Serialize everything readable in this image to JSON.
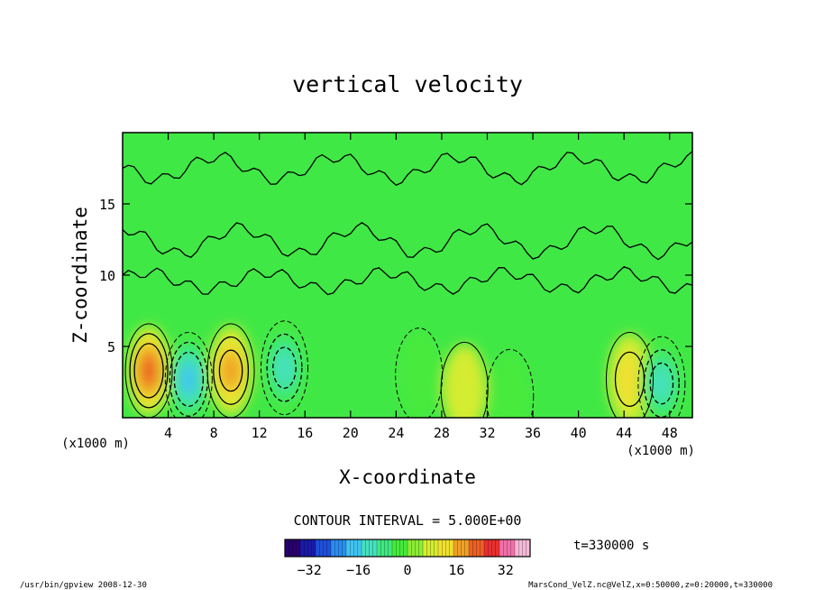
{
  "chart_data": {
    "type": "heatmap",
    "title": "vertical velocity",
    "xlabel": "X-coordinate",
    "ylabel": "Z-coordinate",
    "x_unit_left": "(x1000 m)",
    "x_unit_right": "(x1000 m)",
    "xlim": [
      0,
      50
    ],
    "ylim": [
      0,
      20
    ],
    "x_ticks": [
      4,
      8,
      12,
      16,
      20,
      24,
      28,
      32,
      36,
      40,
      44,
      48
    ],
    "y_ticks": [
      5,
      10,
      15
    ],
    "contour_interval_label": "CONTOUR INTERVAL = 5.000E+00",
    "time_label": "t=330000 s",
    "colorbar": {
      "min": -40,
      "max": 40,
      "tick_values": [
        -32,
        -16,
        0,
        16,
        32
      ],
      "tick_labels": [
        "−32",
        "−16",
        "0",
        "16",
        "32"
      ],
      "colors": [
        "#2a0070",
        "#1a1aa8",
        "#1f4fd8",
        "#2a8cf0",
        "#40c4f0",
        "#46e0c0",
        "#3ee880",
        "#46ea3c",
        "#8cec34",
        "#d4ec30",
        "#f0e030",
        "#f0a028",
        "#ec6024",
        "#e83030",
        "#f070a8",
        "#f4b8d8"
      ]
    },
    "features": [
      {
        "x": 2.3,
        "z": 3.3,
        "value": 20
      },
      {
        "x": 5.8,
        "z": 2.7,
        "value": -18
      },
      {
        "x": 9.5,
        "z": 3.3,
        "value": 14
      },
      {
        "x": 14.2,
        "z": 3.5,
        "value": -14
      },
      {
        "x": 26.0,
        "z": 3.0,
        "value": -7
      },
      {
        "x": 30.0,
        "z": 2.0,
        "value": 7
      },
      {
        "x": 34.0,
        "z": 1.5,
        "value": -4
      },
      {
        "x": 44.5,
        "z": 2.7,
        "value": 8
      },
      {
        "x": 47.3,
        "z": 2.4,
        "value": -16
      }
    ]
  },
  "footer": {
    "left": "/usr/bin/gpview   2008-12-30",
    "right": "MarsCond_VelZ.nc@VelZ,x=0:50000,z=0:20000,t=330000"
  }
}
